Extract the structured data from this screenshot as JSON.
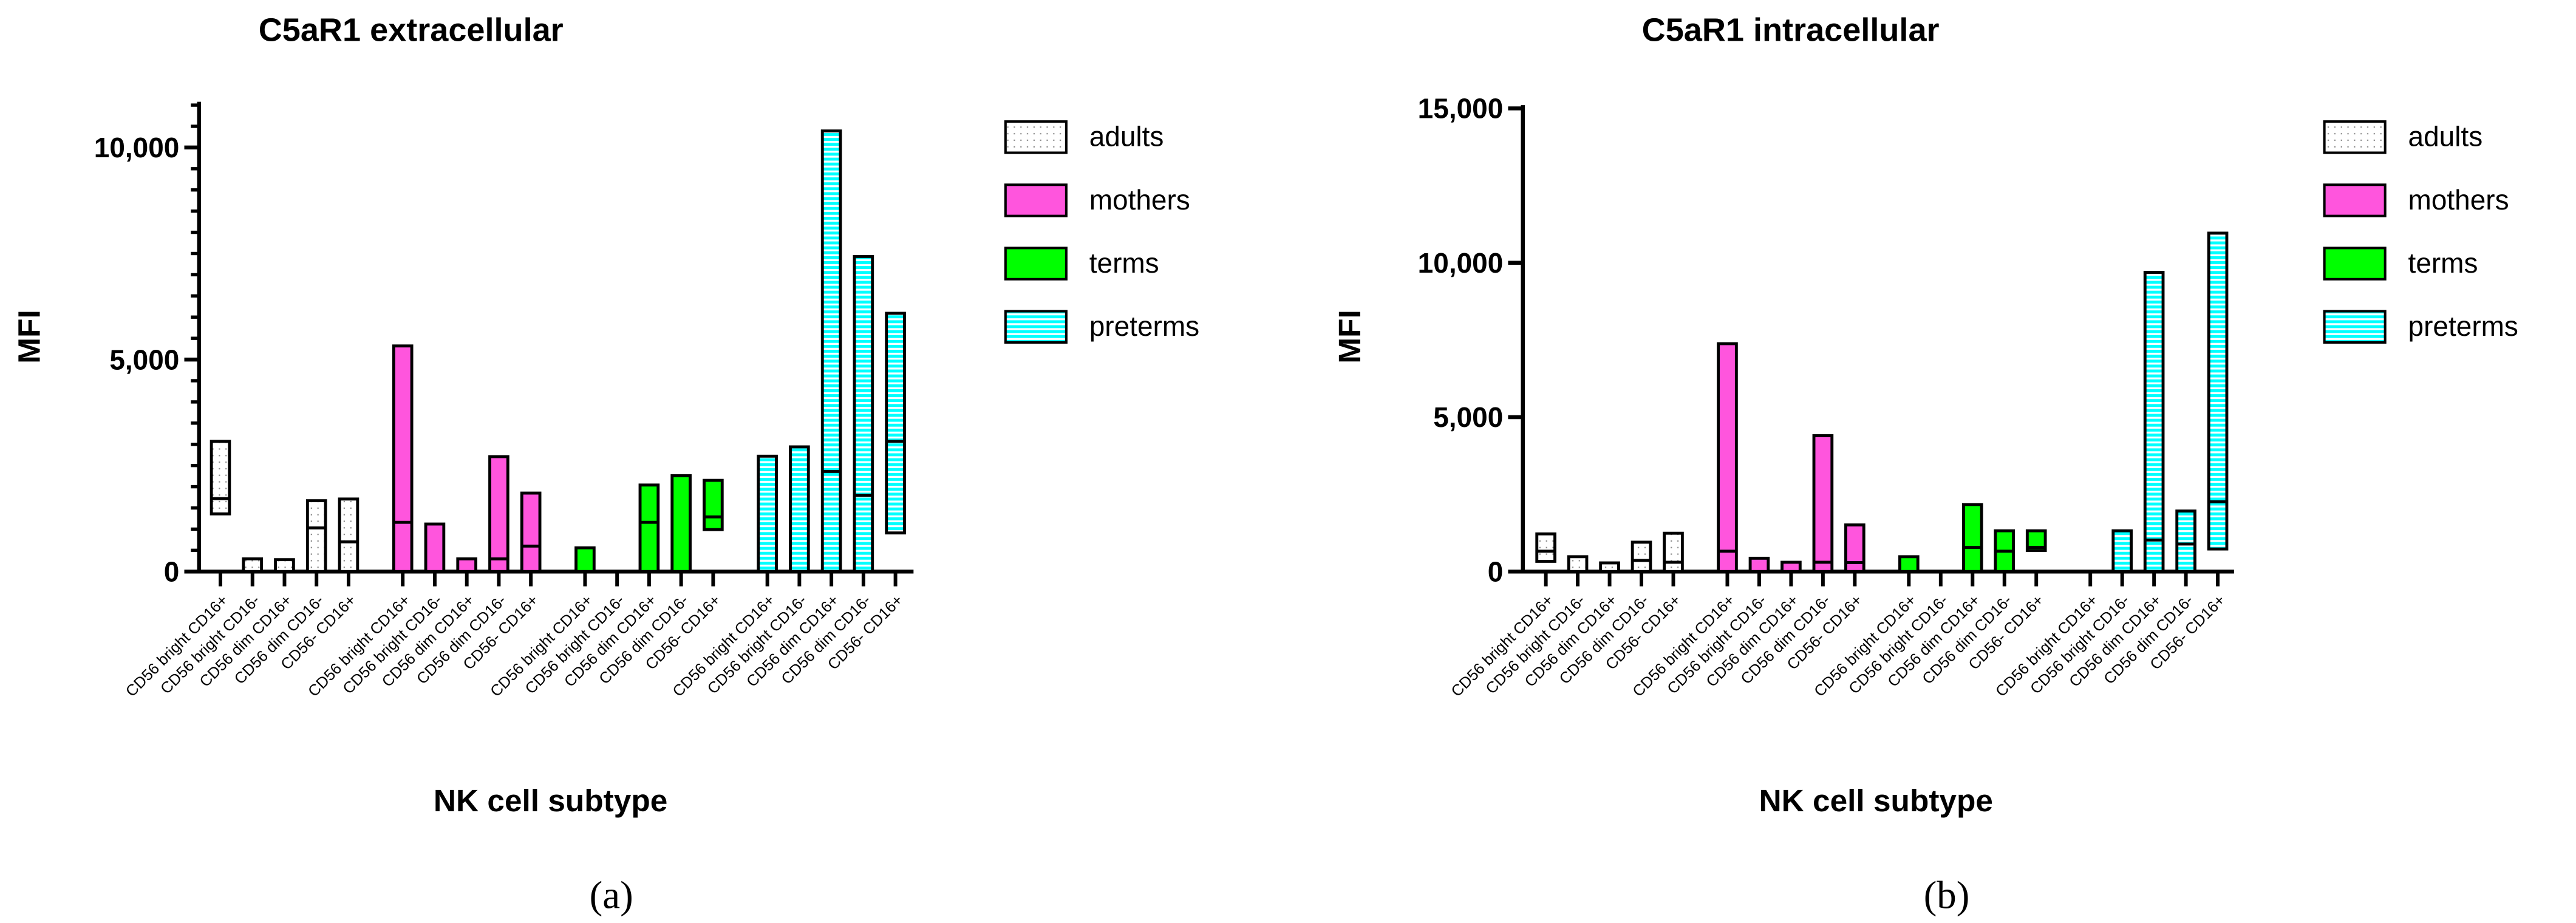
{
  "chart_data": [
    {
      "type": "bar",
      "subtype": "floating min-max bars with median line",
      "panel_label": "(a)",
      "title": "C5aR1 extracellular",
      "xlabel": "NK cell subtype",
      "ylabel": "MFI",
      "ylim": [
        0,
        11000
      ],
      "yticks": [
        0,
        5000,
        10000
      ],
      "ytick_labels": [
        "0",
        "5,000",
        "10,000"
      ],
      "minor_tick_step": 500,
      "categories": [
        "CD56 bright  CD16+",
        "CD56 bright  CD16-",
        "CD56 dim  CD16+",
        "CD56 dim  CD16-",
        "CD56-  CD16+"
      ],
      "legend_position": "right",
      "series": [
        {
          "name": "adults",
          "color": "#ffffff",
          "pattern": "dots",
          "min": [
            1360,
            0,
            0,
            0,
            0
          ],
          "median": [
            1720,
            null,
            null,
            1030,
            700
          ],
          "max": [
            3070,
            300,
            280,
            1670,
            1710
          ]
        },
        {
          "name": "mothers",
          "color": "#ff55dd",
          "pattern": "solid",
          "min": [
            0,
            0,
            0,
            0,
            0
          ],
          "median": [
            1160,
            null,
            null,
            300,
            600
          ],
          "max": [
            5320,
            1120,
            300,
            2710,
            1850
          ]
        },
        {
          "name": "terms",
          "color": "#00ff00",
          "pattern": "solid",
          "min": [
            0,
            null,
            0,
            0,
            990
          ],
          "median": [
            null,
            null,
            1160,
            null,
            1290
          ],
          "max": [
            560,
            null,
            2040,
            2260,
            2150
          ]
        },
        {
          "name": "preterms",
          "color": "#00ffff",
          "pattern": "stripes",
          "min": [
            0,
            0,
            0,
            0,
            910
          ],
          "median": [
            null,
            null,
            2360,
            1800,
            3070
          ],
          "max": [
            2720,
            2940,
            10390,
            7430,
            6090
          ]
        }
      ]
    },
    {
      "type": "bar",
      "subtype": "floating min-max bars with median line",
      "panel_label": "(b)",
      "title": "C5aR1 intracellular",
      "xlabel": "NK cell subtype",
      "ylabel": "MFI",
      "ylim": [
        0,
        15000
      ],
      "yticks": [
        0,
        5000,
        10000,
        15000
      ],
      "ytick_labels": [
        "0",
        "5,000",
        "10,000",
        "15,000"
      ],
      "minor_tick_step": null,
      "categories": [
        "CD56 bright  CD16+",
        "CD56 bright  CD16-",
        "CD56 dim  CD16+",
        "CD56 dim  CD16-",
        "CD56-  CD16+"
      ],
      "legend_position": "right",
      "series": [
        {
          "name": "adults",
          "color": "#ffffff",
          "pattern": "dots",
          "min": [
            330,
            0,
            0,
            0,
            0
          ],
          "median": [
            660,
            null,
            null,
            360,
            300
          ],
          "max": [
            1220,
            480,
            280,
            950,
            1240
          ]
        },
        {
          "name": "mothers",
          "color": "#ff55dd",
          "pattern": "solid",
          "min": [
            0,
            0,
            0,
            0,
            0
          ],
          "median": [
            660,
            null,
            null,
            300,
            290
          ],
          "max": [
            7380,
            430,
            300,
            4400,
            1510
          ]
        },
        {
          "name": "terms",
          "color": "#00ff00",
          "pattern": "solid",
          "min": [
            0,
            null,
            0,
            0,
            680
          ],
          "median": [
            null,
            null,
            780,
            660,
            780
          ],
          "max": [
            480,
            null,
            2170,
            1320,
            1320
          ]
        },
        {
          "name": "preterms",
          "color": "#00ffff",
          "pattern": "stripes",
          "min": [
            null,
            0,
            0,
            0,
            730
          ],
          "median": [
            null,
            null,
            1020,
            890,
            2260
          ],
          "max": [
            null,
            1320,
            9690,
            1960,
            10960
          ]
        }
      ]
    }
  ]
}
